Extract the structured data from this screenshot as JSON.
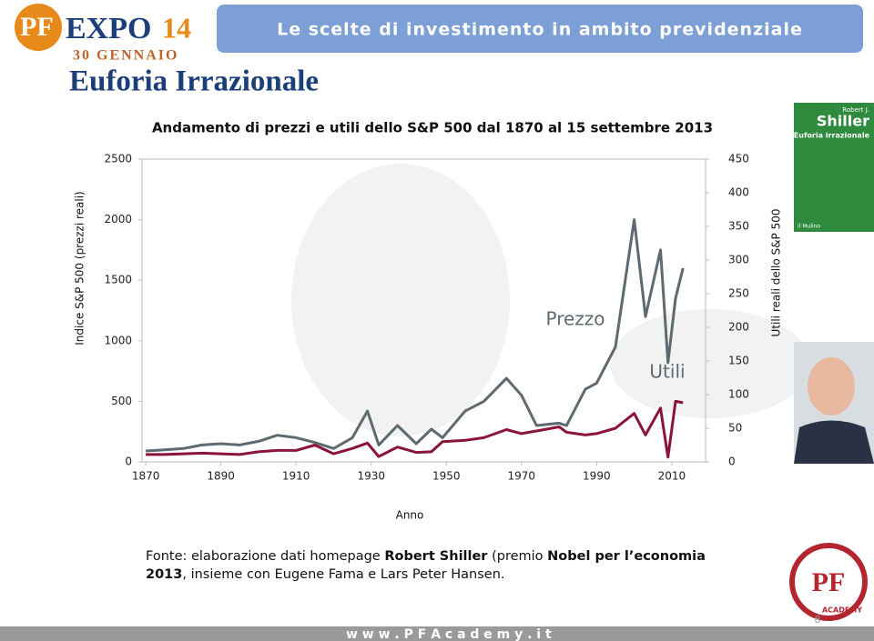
{
  "header": {
    "logo": {
      "pf": "PF",
      "expo": "EXPO",
      "edition": "14",
      "date": "30 GENNAIO"
    },
    "banner": "Le scelte di investimento in ambito previdenziale"
  },
  "slide_title": "Euforia Irrazionale",
  "chart_data": {
    "type": "line",
    "title": "Andamento di prezzi e utili dello S&P 500 dal 1870 al 15 settembre 2013",
    "x_label": "Anno",
    "y_label": "Indice S&P 500 (prezzi reali)",
    "y2_label": "Utili reali dello S&P 500",
    "x": [
      1870,
      1875,
      1880,
      1885,
      1890,
      1895,
      1900,
      1905,
      1910,
      1915,
      1920,
      1925,
      1929,
      1932,
      1937,
      1942,
      1946,
      1949,
      1955,
      1960,
      1966,
      1970,
      1974,
      1980,
      1982,
      1987,
      1990,
      1995,
      2000,
      2003,
      2007,
      2009,
      2011,
      2013
    ],
    "series": [
      {
        "name": "Prezzo",
        "color": "#5e6a6f",
        "values": [
          90,
          100,
          110,
          140,
          150,
          140,
          170,
          220,
          200,
          160,
          110,
          200,
          420,
          140,
          300,
          150,
          270,
          200,
          420,
          500,
          690,
          550,
          300,
          320,
          300,
          600,
          650,
          950,
          2000,
          1200,
          1750,
          820,
          1350,
          1600
        ]
      },
      {
        "name": "Utili",
        "color": "#8a1538",
        "axis": "y2",
        "values": [
          11,
          11,
          12,
          13,
          12,
          11,
          15,
          17,
          17,
          25,
          12,
          20,
          28,
          8,
          22,
          14,
          15,
          30,
          32,
          36,
          48,
          42,
          46,
          52,
          44,
          40,
          42,
          50,
          72,
          40,
          80,
          7,
          90,
          88
        ]
      }
    ],
    "xlim": [
      1869,
      2019
    ],
    "xticks": [
      1870,
      1890,
      1910,
      1930,
      1950,
      1970,
      1990,
      2010
    ],
    "ylim": [
      0,
      2500
    ],
    "yticks": [
      0,
      500,
      1000,
      1500,
      2000,
      2500
    ],
    "y2lim": [
      0,
      450
    ],
    "y2ticks": [
      0,
      50,
      100,
      150,
      200,
      250,
      300,
      350,
      400,
      450
    ]
  },
  "book": {
    "author_first": "Robert J.",
    "author": "Shiller",
    "title": "Euforia irrazionale",
    "publisher": "il Mulino"
  },
  "note": {
    "parts": [
      "Fonte: elaborazione dati homepage ",
      "Robert Shiller",
      " (premio ",
      "Nobel per l’economia 2013",
      ", insieme con Eugene Fama e Lars Peter Hansen."
    ]
  },
  "academy_logo": {
    "text": "ACADEMY",
    "page": "8"
  },
  "footer": "w w w . P F A c a d e m y . i t"
}
